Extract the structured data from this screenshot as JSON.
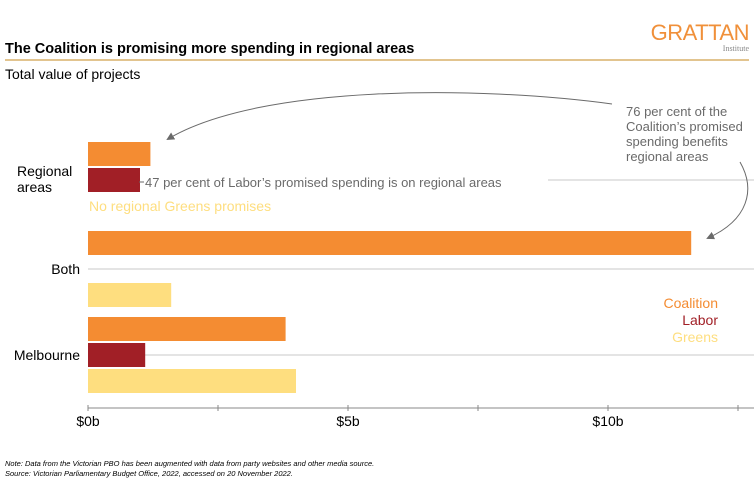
{
  "header": {
    "title": "The Coalition is promising more spending in regional areas",
    "subtitle": "Total value of projects",
    "logo": "GRATTAN",
    "logo_sub": "Institute"
  },
  "colors": {
    "Coalition": "#F48C32",
    "Labor": "#A11F26",
    "Greens": "#FEDE7F",
    "rule": "#D9B06A",
    "grid": "#C8C8C8",
    "annotation": "#6a6a6a"
  },
  "chart_data": {
    "type": "bar",
    "orientation": "horizontal",
    "title": "The Coalition is promising more spending in regional areas",
    "subtitle": "Total value of projects",
    "xlabel": "",
    "ylabel": "",
    "xlim": [
      0,
      12.5
    ],
    "unit": "$ billion",
    "categories": [
      "Regional areas",
      "Both",
      "Melbourne"
    ],
    "category_labels": [
      [
        "Regional",
        "areas"
      ],
      [
        "Both"
      ],
      [
        "Melbourne"
      ]
    ],
    "series": [
      {
        "name": "Coalition",
        "values": [
          1.2,
          11.6,
          3.8
        ]
      },
      {
        "name": "Labor",
        "values": [
          1.0,
          null,
          1.1
        ]
      },
      {
        "name": "Greens",
        "values": [
          null,
          1.6,
          4.0
        ]
      }
    ],
    "ticks": [
      {
        "value": 0,
        "label": "$0b"
      },
      {
        "value": 2.5,
        "label": ""
      },
      {
        "value": 5,
        "label": "$5b"
      },
      {
        "value": 7.5,
        "label": ""
      },
      {
        "value": 10,
        "label": "$10b"
      },
      {
        "value": 12.5,
        "label": ""
      }
    ],
    "legend": {
      "position": "right",
      "entries": [
        "Coalition",
        "Labor",
        "Greens"
      ]
    },
    "grid": true,
    "annotations": {
      "coalition": [
        "76 per cent of the",
        "Coalition’s promised",
        "spending benefits",
        "regional areas"
      ],
      "labor": "47 per cent of Labor’s promised spending is on regional areas",
      "greens": "No regional Greens promises"
    }
  },
  "footer": {
    "note": "Note: Data from the Victorian PBO has been augmented with data from party websites and other media source.",
    "source": "Source:  Victorian Parliamentary Budget Office, 2022, accessed on 20 November 2022."
  }
}
